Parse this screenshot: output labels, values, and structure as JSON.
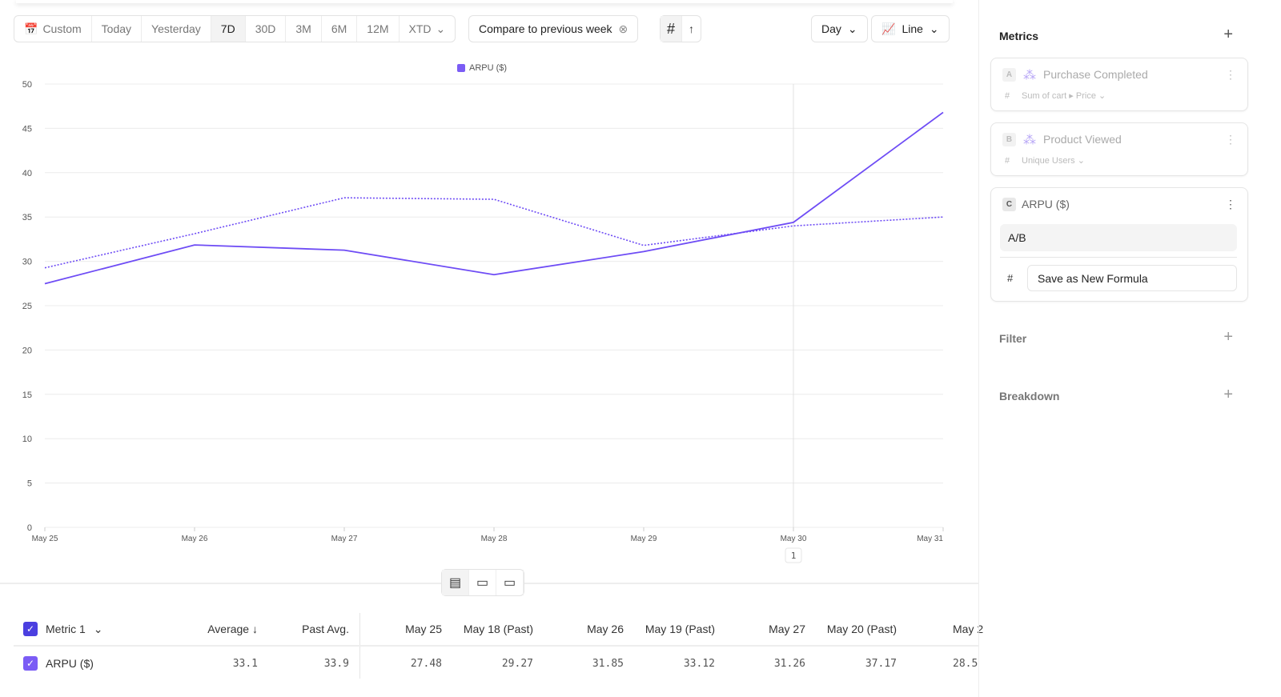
{
  "toolbar": {
    "ranges": [
      "Custom",
      "Today",
      "Yesterday",
      "7D",
      "30D",
      "3M",
      "6M",
      "12M",
      "XTD"
    ],
    "active": "7D",
    "compare": "Compare to previous week",
    "interval": "Day",
    "chart_type": "Line"
  },
  "chart_data": {
    "type": "line",
    "legend": [
      "ARPU ($)"
    ],
    "categories": [
      "May 25",
      "May 26",
      "May 27",
      "May 28",
      "May 29",
      "May 30",
      "May 31"
    ],
    "series": [
      {
        "name": "ARPU ($)",
        "style": "solid",
        "values": [
          27.48,
          31.85,
          31.26,
          28.5,
          31.1,
          34.4,
          46.8
        ]
      },
      {
        "style": "dotted",
        "values": [
          29.27,
          33.12,
          37.17,
          37.0,
          31.8,
          34.0,
          35.0
        ]
      }
    ],
    "yticks": [
      0,
      5,
      10,
      15,
      20,
      25,
      30,
      35,
      40,
      45,
      50
    ],
    "ylim": [
      0,
      50
    ],
    "grid": true,
    "color": "#6e4cf5",
    "marker": {
      "x": "May 30",
      "label": "1"
    }
  },
  "table": {
    "headers": {
      "metric": "Metric 1",
      "average": "Average",
      "past_avg": "Past Avg.",
      "cols": [
        "May 25",
        "May 18 (Past)",
        "May 26",
        "May 19 (Past)",
        "May 27",
        "May 20 (Past)",
        "May 2"
      ]
    },
    "rows": [
      {
        "name": "ARPU ($)",
        "average": "33.1",
        "past_avg": "33.9",
        "cols": [
          "27.48",
          "29.27",
          "31.85",
          "33.12",
          "31.26",
          "37.17",
          "28.5"
        ]
      }
    ]
  },
  "sidebar": {
    "metrics_title": "Metrics",
    "metrics": [
      {
        "letter": "A",
        "name": "Purchase Completed",
        "agg": "Sum of cart ▸ Price"
      },
      {
        "letter": "B",
        "name": "Product Viewed",
        "agg": "Unique Users"
      }
    ],
    "formula": {
      "letter": "C",
      "name": "ARPU ($)",
      "expr": "A/B",
      "save": "Save as New Formula"
    },
    "filter": "Filter",
    "breakdown": "Breakdown"
  }
}
